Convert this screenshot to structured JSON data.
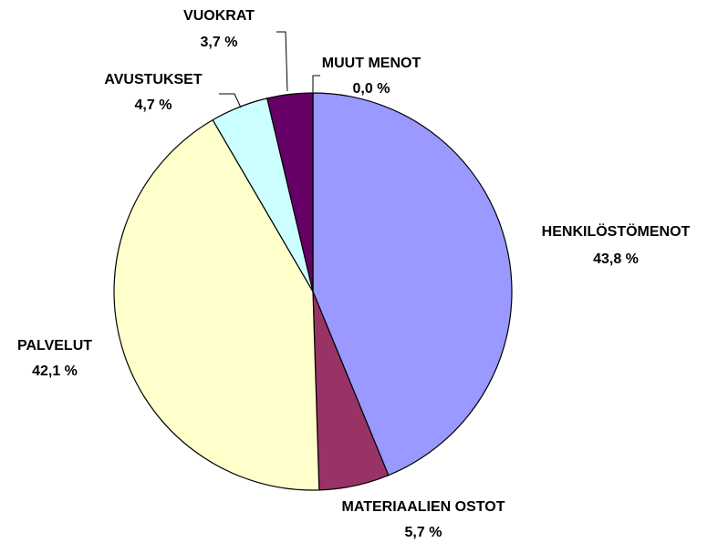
{
  "chart_data": {
    "type": "pie",
    "categories": [
      "HENKILÖSTÖMENOT",
      "MATERIAALIEN OSTOT",
      "PALVELUT",
      "AVUSTUKSET",
      "VUOKRAT",
      "MUUT MENOT"
    ],
    "values": [
      43.8,
      5.7,
      42.1,
      4.7,
      3.7,
      0.0
    ],
    "value_labels": [
      "43,8 %",
      "5,7 %",
      "42,1 %",
      "4,7 %",
      "3,7 %",
      "0,0 %"
    ],
    "colors": [
      "#9999ff",
      "#993366",
      "#ffffcc",
      "#ccffff",
      "#660066",
      "#ff8080"
    ]
  }
}
